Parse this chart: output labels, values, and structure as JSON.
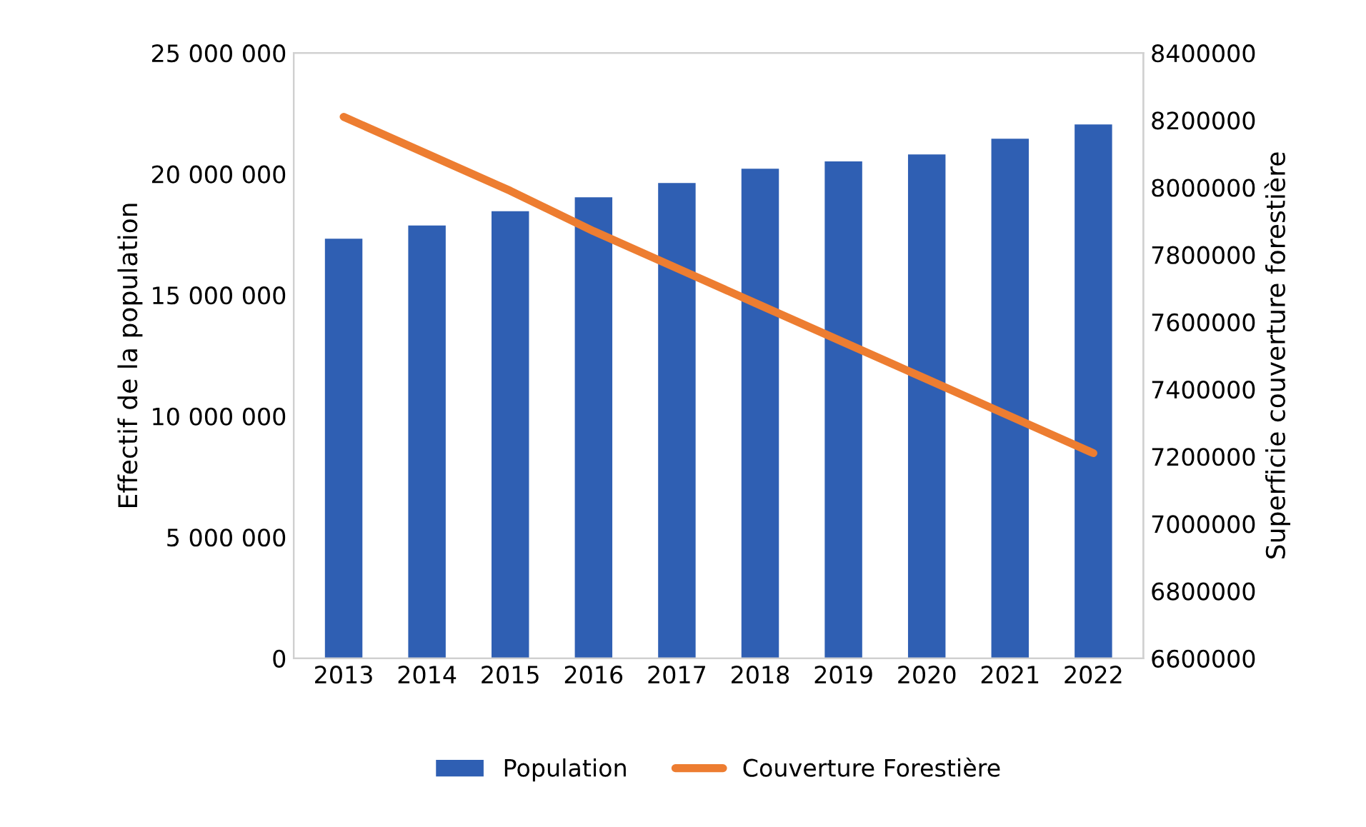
{
  "chart_data": {
    "type": "bar",
    "ylabel": "Effectif de la population",
    "y2label": "Superficie couverture forestière",
    "categories": [
      "2013",
      "2014",
      "2015",
      "2016",
      "2017",
      "2018",
      "2019",
      "2020",
      "2021",
      "2022"
    ],
    "series": [
      {
        "name": "Population",
        "color": "#2f5fb3",
        "values": [
          17330000,
          17870000,
          18460000,
          19040000,
          19630000,
          20220000,
          20520000,
          20810000,
          21460000,
          22050000
        ]
      },
      {
        "name": "Couverture Forestière",
        "type": "line",
        "axis": "y2",
        "color": "#ed7d31",
        "values": [
          8210000,
          8100000,
          7990000,
          7870000,
          7760000,
          7650000,
          7540000,
          7430000,
          7320000,
          7210000
        ]
      }
    ],
    "ylim": [
      0,
      25000000
    ],
    "yticks": [
      0,
      {
        "value": 5000000,
        "label": "5 000 000"
      },
      {
        "value": 10000000,
        "label": "10 000 000"
      },
      {
        "value": 15000000,
        "label": "15 000 000"
      },
      {
        "value": 20000000,
        "label": "20 000 000"
      },
      {
        "value": 25000000,
        "label": "25 000 000"
      }
    ],
    "y2lim": [
      6600000,
      8400000
    ],
    "y2ticks": [
      6600000,
      6800000,
      7000000,
      7200000,
      7400000,
      7600000,
      7800000,
      8000000,
      8200000,
      8400000
    ],
    "grid": false,
    "legend": "bottom",
    "marker": "none",
    "line_style": "solid"
  }
}
